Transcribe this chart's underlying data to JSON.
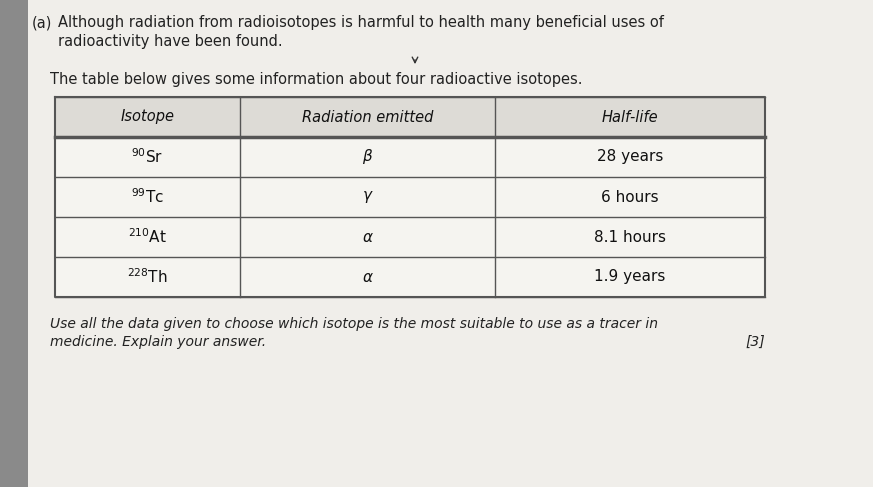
{
  "outer_bg": "#b0b0b0",
  "inner_bg": "#f0eeea",
  "left_strip_color": "#888888",
  "header_line1_prefix": "(a)",
  "header_line1_main": "  Although radiation from radioisotopes is harmful to health many beneficial uses of",
  "header_line2": "    radioactivity have been found.",
  "subtitle": "The table below gives some information about four radioactive isotopes.",
  "table_headers": [
    "Isotope",
    "Radiation emitted",
    "Half-life"
  ],
  "table_rows": [
    [
      "⁹⁰Sr",
      "β",
      "28 years"
    ],
    [
      "⁹⁹Tc",
      "γ",
      "6 hours"
    ],
    [
      "²¹⁰At",
      "α",
      "8.1 hours"
    ],
    [
      "²²⁸Th",
      "α",
      "1.9 years"
    ]
  ],
  "table_rows_raw": [
    [
      "$^{90}$Sr",
      "$\\beta$",
      "28 years"
    ],
    [
      "$^{99}$Tc",
      "$\\gamma$",
      "6 hours"
    ],
    [
      "$^{210}$At",
      "$\\alpha$",
      "8.1 hours"
    ],
    [
      "$^{228}$Th",
      "$\\alpha$",
      "1.9 years"
    ]
  ],
  "footer_line1": "Use all the data given to choose which isotope is the most suitable to use as a tracer in",
  "footer_line2": "medicine. Explain your answer.",
  "footer_mark": "[3]",
  "table_bg": "#f5f4f0",
  "header_row_bg": "#dddbd6",
  "line_color": "#555555",
  "font_size_body": 10.5,
  "font_size_table": 10.5
}
